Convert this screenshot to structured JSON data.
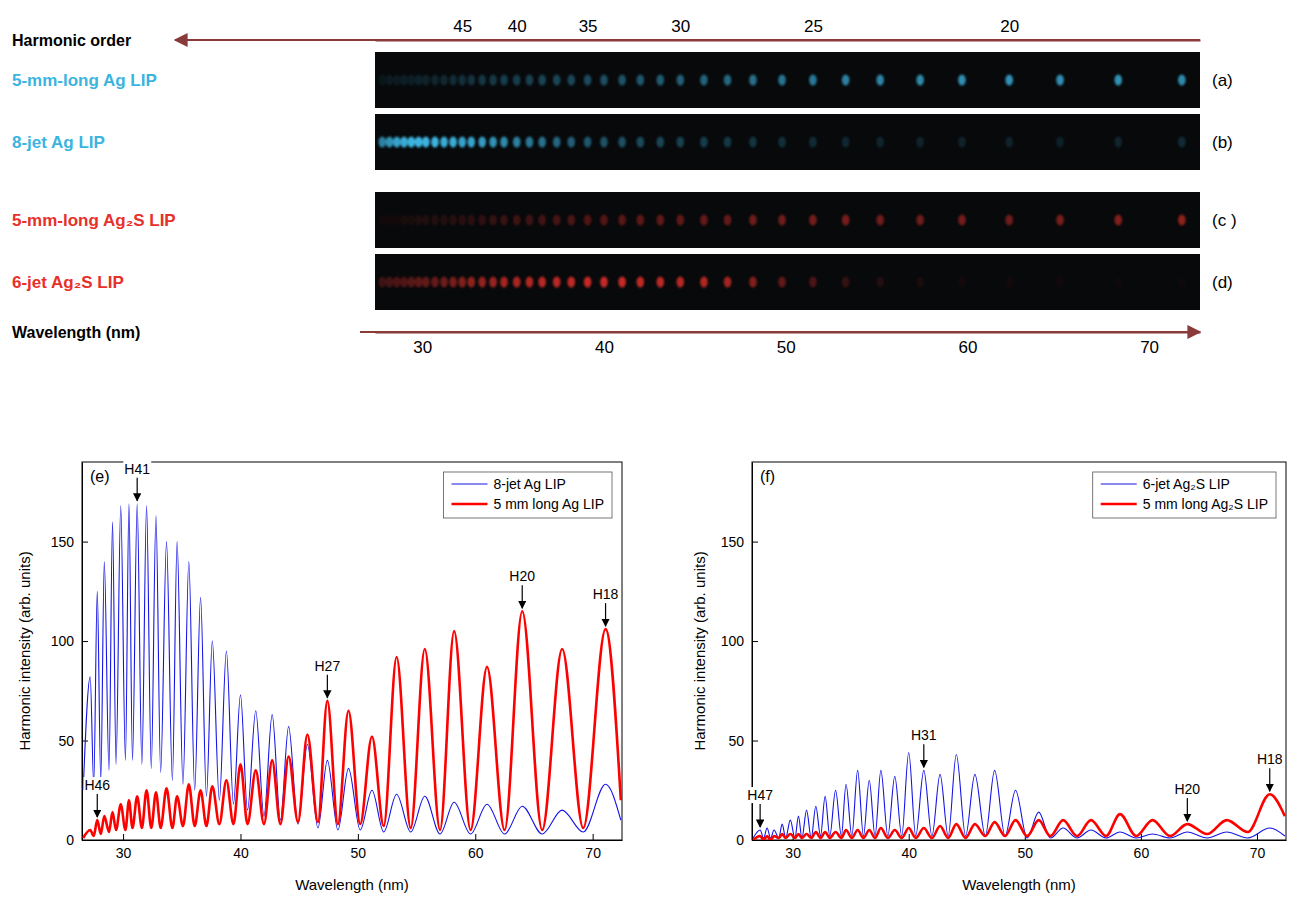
{
  "chart_data": [
    {
      "type": "strip",
      "xlabel": "Wavelength (nm)",
      "x2label": "Harmonic order",
      "xlim": [
        27.4,
        72.8
      ],
      "xticks": [
        30,
        40,
        50,
        60,
        70
      ],
      "x2ticks": [
        {
          "value": 32.2,
          "label": "45"
        },
        {
          "value": 35.2,
          "label": "40"
        },
        {
          "value": 39.1,
          "label": "35"
        },
        {
          "value": 44.2,
          "label": "30"
        },
        {
          "value": 51.5,
          "label": "25"
        },
        {
          "value": 62.3,
          "label": "20"
        }
      ],
      "x": [
        27.8,
        28.2,
        28.6,
        29.0,
        29.4,
        29.8,
        30.2,
        30.7,
        31.2,
        31.7,
        32.2,
        32.7,
        33.3,
        33.9,
        34.5,
        35.2,
        35.9,
        36.6,
        37.4,
        38.2,
        39.1,
        40.0,
        41.0,
        42.0,
        43.1,
        44.2,
        45.5,
        46.8,
        48.2,
        49.8,
        51.5,
        53.3,
        55.2,
        57.4,
        59.7,
        62.3,
        65.1,
        68.3,
        71.8
      ],
      "series": [
        {
          "name": "5-mm-long Ag LIP",
          "panel": "(a)",
          "color": "#3cb4e0",
          "values": [
            0.08,
            0.1,
            0.1,
            0.12,
            0.12,
            0.14,
            0.15,
            0.16,
            0.18,
            0.2,
            0.22,
            0.24,
            0.26,
            0.28,
            0.3,
            0.3,
            0.32,
            0.34,
            0.35,
            0.36,
            0.38,
            0.4,
            0.42,
            0.45,
            0.48,
            0.5,
            0.52,
            0.55,
            0.6,
            0.62,
            0.65,
            0.7,
            0.72,
            0.75,
            0.78,
            0.8,
            0.78,
            0.8,
            0.75
          ]
        },
        {
          "name": "8-jet Ag LIP",
          "panel": "(b)",
          "color": "#3cb4e0",
          "values": [
            0.7,
            0.8,
            0.9,
            0.95,
            1,
            1,
            1,
            1,
            0.95,
            0.95,
            0.9,
            0.9,
            0.85,
            0.8,
            0.75,
            0.7,
            0.65,
            0.6,
            0.55,
            0.5,
            0.45,
            0.42,
            0.4,
            0.38,
            0.35,
            0.32,
            0.3,
            0.28,
            0.25,
            0.22,
            0.2,
            0.18,
            0.16,
            0.15,
            0.15,
            0.15,
            0.14,
            0.16,
            0.2
          ]
        },
        {
          "name": "5-mm-long Ag₂S LIP",
          "panel": "(c )",
          "color": "#e8302a",
          "values": [
            0.05,
            0.06,
            0.06,
            0.08,
            0.08,
            0.1,
            0.1,
            0.12,
            0.12,
            0.14,
            0.15,
            0.16,
            0.18,
            0.2,
            0.22,
            0.24,
            0.25,
            0.26,
            0.28,
            0.3,
            0.32,
            0.34,
            0.36,
            0.38,
            0.4,
            0.4,
            0.42,
            0.42,
            0.45,
            0.45,
            0.48,
            0.5,
            0.45,
            0.45,
            0.48,
            0.45,
            0.5,
            0.55,
            0.6
          ]
        },
        {
          "name": "6-jet Ag₂S LIP",
          "panel": "(d)",
          "color": "#e8302a",
          "values": [
            0.25,
            0.28,
            0.3,
            0.32,
            0.35,
            0.38,
            0.4,
            0.42,
            0.45,
            0.5,
            0.55,
            0.6,
            0.62,
            0.65,
            0.7,
            0.72,
            0.75,
            0.78,
            0.8,
            0.82,
            0.85,
            0.85,
            0.85,
            0.82,
            0.8,
            0.78,
            0.75,
            0.7,
            0.55,
            0.4,
            0.3,
            0.2,
            0.12,
            0.08,
            0.06,
            0.05,
            0.05,
            0.04,
            0.04
          ]
        }
      ]
    },
    {
      "type": "line",
      "title": "(e)",
      "xlabel": "Wavelength (nm)",
      "ylabel": "Harmonic intensity (arb. units)",
      "xlim": [
        26.5,
        72.5
      ],
      "ylim": [
        0,
        190
      ],
      "xticks": [
        30,
        40,
        50,
        60,
        70
      ],
      "yticks": [
        0,
        50,
        100,
        150
      ],
      "legend": "upper right",
      "x": [
        26.6,
        27.2,
        27.5,
        27.8,
        28.1,
        28.4,
        28.8,
        29.1,
        29.4,
        29.8,
        30.2,
        30.5,
        30.8,
        31.2,
        31.6,
        32.0,
        32.4,
        32.8,
        33.2,
        33.7,
        34.2,
        34.6,
        35.1,
        35.6,
        36.1,
        36.6,
        37.1,
        37.6,
        38.2,
        38.8,
        39.4,
        40.0,
        40.6,
        41.3,
        42.0,
        42.7,
        43.4,
        44.1,
        44.9,
        45.7,
        46.6,
        47.4,
        48.3,
        49.2,
        50.2,
        51.2,
        52.2,
        53.3,
        54.5,
        55.7,
        57.0,
        58.2,
        59.6,
        61.0,
        62.5,
        64.0,
        65.7,
        67.4,
        69.2,
        71.1,
        72.4
      ],
      "series": [
        {
          "name": "8-jet Ag LIP",
          "color": "#1414e6",
          "line_style": "thin",
          "values": [
            25,
            82,
            28,
            125,
            30,
            140,
            35,
            160,
            38,
            168,
            40,
            169,
            40,
            169,
            38,
            168,
            36,
            163,
            34,
            150,
            30,
            150,
            28,
            140,
            25,
            122,
            22,
            100,
            20,
            95,
            18,
            73,
            15,
            65,
            12,
            63,
            10,
            57,
            8,
            48,
            6,
            40,
            5,
            36,
            5,
            25,
            4,
            23,
            4,
            22,
            3,
            19,
            3,
            18,
            3,
            17,
            3,
            15,
            4,
            28,
            10
          ]
        },
        {
          "name": "5 mm long Ag LIP",
          "color": "#ff0000",
          "line_style": "thick",
          "values": [
            1,
            5,
            2,
            10,
            3,
            12,
            4,
            14,
            5,
            18,
            5,
            20,
            6,
            22,
            6,
            25,
            6,
            24,
            6,
            26,
            6,
            22,
            7,
            28,
            7,
            25,
            7,
            27,
            8,
            30,
            8,
            38,
            8,
            35,
            8,
            40,
            8,
            42,
            9,
            53,
            9,
            70,
            8,
            65,
            8,
            52,
            7,
            92,
            6,
            96,
            5,
            105,
            5,
            87,
            5,
            115,
            5,
            96,
            6,
            106,
            20
          ]
        }
      ],
      "annotations": [
        {
          "text": "H41",
          "x": 31.2,
          "y": 169
        },
        {
          "text": "H46",
          "x": 27.8,
          "y": 10
        },
        {
          "text": "H27",
          "x": 47.4,
          "y": 70
        },
        {
          "text": "H20",
          "x": 64.0,
          "y": 115
        },
        {
          "text": "H18",
          "x": 71.1,
          "y": 106
        }
      ]
    },
    {
      "type": "line",
      "title": "(f)",
      "xlabel": "Wavelength (nm)",
      "ylabel": "Harmonic intensity (arb. units)",
      "xlim": [
        26.5,
        72.5
      ],
      "ylim": [
        0,
        190
      ],
      "xticks": [
        30,
        40,
        50,
        60,
        70
      ],
      "yticks": [
        0,
        50,
        100,
        150
      ],
      "legend": "upper right",
      "x": [
        26.6,
        27.2,
        27.5,
        27.8,
        28.1,
        28.4,
        28.8,
        29.1,
        29.4,
        29.8,
        30.2,
        30.5,
        30.8,
        31.2,
        31.6,
        32.0,
        32.4,
        32.8,
        33.2,
        33.7,
        34.2,
        34.6,
        35.1,
        35.6,
        36.1,
        36.6,
        37.1,
        37.6,
        38.2,
        38.8,
        39.4,
        40.0,
        40.6,
        41.3,
        42.0,
        42.7,
        43.4,
        44.1,
        44.9,
        45.7,
        46.6,
        47.4,
        48.3,
        49.2,
        50.2,
        51.2,
        52.2,
        53.3,
        54.5,
        55.7,
        57.0,
        58.2,
        59.6,
        61.0,
        62.5,
        64.0,
        65.7,
        67.4,
        69.2,
        71.1,
        72.4
      ],
      "series": [
        {
          "name": "6-jet Ag₂S LIP",
          "color": "#1414e6",
          "line_style": "thin",
          "values": [
            1,
            5,
            1,
            6,
            1,
            5,
            1,
            8,
            1,
            10,
            1,
            12,
            1,
            15,
            1,
            17,
            2,
            22,
            2,
            25,
            2,
            28,
            2,
            35,
            2,
            30,
            2,
            35,
            2,
            32,
            2,
            44,
            2,
            35,
            2,
            33,
            2,
            43,
            2,
            33,
            2,
            35,
            2,
            25,
            1,
            14,
            1,
            6,
            1,
            5,
            1,
            4,
            1,
            3,
            1,
            4,
            1,
            4,
            1,
            6,
            2
          ]
        },
        {
          "name": "5 mm long Ag₂S LIP",
          "color": "#ff0000",
          "line_style": "thick",
          "values": [
            0,
            2,
            0,
            2,
            0,
            2,
            1,
            3,
            1,
            3,
            1,
            3,
            1,
            3,
            1,
            4,
            1,
            4,
            1,
            4,
            1,
            5,
            1,
            5,
            1,
            5,
            1,
            6,
            1,
            5,
            1,
            6,
            1,
            6,
            1,
            7,
            1,
            8,
            1,
            8,
            2,
            9,
            2,
            10,
            2,
            10,
            2,
            10,
            2,
            10,
            2,
            13,
            2,
            10,
            2,
            8,
            3,
            10,
            4,
            23,
            12
          ]
        }
      ],
      "annotations": [
        {
          "text": "H47",
          "x": 27.2,
          "y": 5
        },
        {
          "text": "H31",
          "x": 41.3,
          "y": 35
        },
        {
          "text": "H20",
          "x": 64.0,
          "y": 8
        },
        {
          "text": "H18",
          "x": 71.1,
          "y": 23
        }
      ]
    }
  ]
}
